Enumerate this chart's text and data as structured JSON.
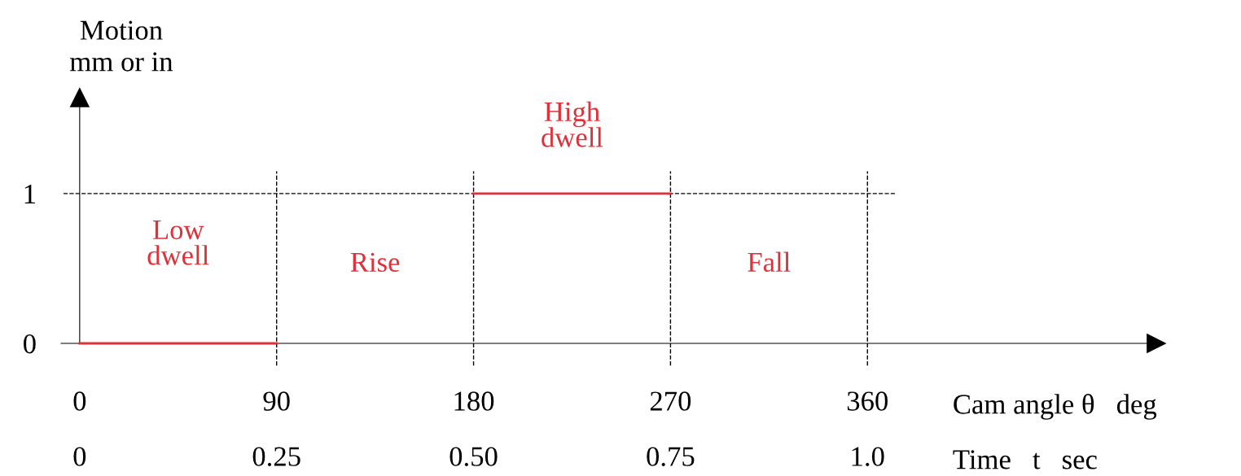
{
  "chart_data": {
    "type": "line",
    "ylabel": "Motion\nmm or in",
    "xlabel": "Cam angle θ   deg",
    "x2label": "Time   t   sec",
    "xlim": [
      -8.5,
      492
    ],
    "xticks": [
      0,
      90,
      180,
      270,
      360
    ],
    "x2lim": [
      -0.0236,
      1.3667
    ],
    "x2ticks": [
      {
        "value": 0,
        "label": "0"
      },
      {
        "value": 0.25,
        "label": "0.25"
      },
      {
        "value": 0.5,
        "label": "0.50"
      },
      {
        "value": 0.75,
        "label": "0.75"
      },
      {
        "value": 1.0,
        "label": "1.0"
      }
    ],
    "ylim": [
      0,
      1.64
    ],
    "yticks": [
      0,
      1
    ],
    "series": [
      {
        "color": "#e0303a",
        "x": [
          0,
          90
        ],
        "values": [
          0,
          0
        ]
      },
      {
        "color": "#e0303a",
        "x": [
          180,
          270
        ],
        "values": [
          1,
          1
        ]
      }
    ],
    "ref_lines": [
      {
        "axis": "x",
        "value": 90,
        "color": "#000000",
        "line_style": "dashed"
      },
      {
        "axis": "x",
        "value": 180,
        "color": "#000000",
        "line_style": "dashed"
      },
      {
        "axis": "x",
        "value": 270,
        "color": "#000000",
        "line_style": "dashed"
      },
      {
        "axis": "x",
        "value": 360,
        "color": "#000000",
        "line_style": "dashed"
      },
      {
        "axis": "y",
        "value": 1,
        "color": "#000000",
        "line_style": "dashed"
      }
    ],
    "annotations": [
      "Low\ndwell",
      "Rise",
      "High\ndwell",
      "Fall"
    ],
    "grid": false,
    "marker": "none",
    "line_style": "solid"
  }
}
